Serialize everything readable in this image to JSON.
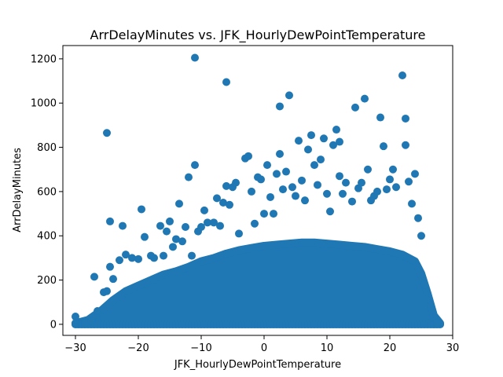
{
  "chart_data": {
    "type": "scatter",
    "title": "ArrDelayMinutes vs. JFK_HourlyDewPointTemperature",
    "xlabel": "JFK_HourlyDewPointTemperature",
    "ylabel": "ArrDelayMinutes",
    "xlim": [
      -32,
      30
    ],
    "ylim": [
      -50,
      1260
    ],
    "xticks": [
      -30,
      -20,
      -10,
      0,
      10,
      20,
      30
    ],
    "yticks": [
      0,
      200,
      400,
      600,
      800,
      1000,
      1200
    ],
    "grid": false,
    "legend": "none",
    "marker_color": "#1f77b4",
    "points": [
      [
        -30,
        35
      ],
      [
        -30,
        5
      ],
      [
        -28.5,
        5
      ],
      [
        -27.5,
        15
      ],
      [
        -27,
        215
      ],
      [
        -26.5,
        60
      ],
      [
        -25.5,
        145
      ],
      [
        -25,
        150
      ],
      [
        -25,
        865
      ],
      [
        -24.5,
        465
      ],
      [
        -24.5,
        260
      ],
      [
        -24,
        205
      ],
      [
        -23,
        290
      ],
      [
        -22.5,
        445
      ],
      [
        -22,
        315
      ],
      [
        -21,
        300
      ],
      [
        -20,
        295
      ],
      [
        -19.5,
        520
      ],
      [
        -19,
        395
      ],
      [
        -18,
        310
      ],
      [
        -17.5,
        300
      ],
      [
        -16.5,
        445
      ],
      [
        -16,
        310
      ],
      [
        -15.5,
        420
      ],
      [
        -15,
        465
      ],
      [
        -14.5,
        350
      ],
      [
        -14,
        385
      ],
      [
        -13.5,
        545
      ],
      [
        -13,
        375
      ],
      [
        -12.5,
        440
      ],
      [
        -12,
        665
      ],
      [
        -11.5,
        310
      ],
      [
        -11,
        720
      ],
      [
        -11,
        1205
      ],
      [
        -10.5,
        420
      ],
      [
        -10,
        440
      ],
      [
        -9.5,
        515
      ],
      [
        -9,
        460
      ],
      [
        -8,
        460
      ],
      [
        -7.5,
        570
      ],
      [
        -7,
        445
      ],
      [
        -6.5,
        550
      ],
      [
        -6,
        625
      ],
      [
        -6,
        1095
      ],
      [
        -5.5,
        540
      ],
      [
        -5,
        620
      ],
      [
        -4.5,
        640
      ],
      [
        -4,
        410
      ],
      [
        -3,
        750
      ],
      [
        -2.5,
        760
      ],
      [
        -2,
        600
      ],
      [
        -1.5,
        455
      ],
      [
        -1,
        665
      ],
      [
        -0.5,
        655
      ],
      [
        0,
        500
      ],
      [
        0.5,
        720
      ],
      [
        1,
        575
      ],
      [
        1.5,
        500
      ],
      [
        2,
        680
      ],
      [
        2.5,
        985
      ],
      [
        2.5,
        770
      ],
      [
        3,
        610
      ],
      [
        3.5,
        690
      ],
      [
        4,
        1035
      ],
      [
        4.5,
        620
      ],
      [
        5,
        580
      ],
      [
        5.5,
        830
      ],
      [
        6,
        650
      ],
      [
        6.5,
        560
      ],
      [
        7,
        790
      ],
      [
        7.5,
        855
      ],
      [
        8,
        720
      ],
      [
        8.5,
        630
      ],
      [
        9,
        745
      ],
      [
        9.5,
        840
      ],
      [
        10,
        590
      ],
      [
        10.5,
        510
      ],
      [
        11,
        810
      ],
      [
        11.5,
        880
      ],
      [
        12,
        825
      ],
      [
        12,
        670
      ],
      [
        12.5,
        590
      ],
      [
        13,
        640
      ],
      [
        14,
        555
      ],
      [
        14.5,
        980
      ],
      [
        15,
        615
      ],
      [
        15.5,
        640
      ],
      [
        16,
        1020
      ],
      [
        16.5,
        700
      ],
      [
        17,
        560
      ],
      [
        17.5,
        580
      ],
      [
        18,
        600
      ],
      [
        18.5,
        935
      ],
      [
        19,
        805
      ],
      [
        19.5,
        610
      ],
      [
        20,
        655
      ],
      [
        20.5,
        700
      ],
      [
        21,
        620
      ],
      [
        22,
        1125
      ],
      [
        22.5,
        930
      ],
      [
        22.5,
        810
      ],
      [
        23,
        645
      ],
      [
        23.5,
        545
      ],
      [
        24,
        680
      ],
      [
        24.5,
        480
      ],
      [
        25,
        400
      ],
      [
        25.5,
        180
      ],
      [
        26,
        110
      ],
      [
        27,
        30
      ],
      [
        27.5,
        5
      ]
    ],
    "dense_band_top": [
      [
        -30,
        5
      ],
      [
        -28,
        20
      ],
      [
        -26,
        60
      ],
      [
        -24,
        110
      ],
      [
        -22,
        150
      ],
      [
        -20,
        175
      ],
      [
        -18,
        200
      ],
      [
        -16,
        225
      ],
      [
        -14,
        240
      ],
      [
        -12,
        260
      ],
      [
        -10,
        285
      ],
      [
        -8,
        300
      ],
      [
        -6,
        320
      ],
      [
        -4,
        335
      ],
      [
        -2,
        345
      ],
      [
        0,
        355
      ],
      [
        2,
        360
      ],
      [
        4,
        365
      ],
      [
        6,
        370
      ],
      [
        8,
        370
      ],
      [
        10,
        365
      ],
      [
        12,
        360
      ],
      [
        14,
        355
      ],
      [
        16,
        350
      ],
      [
        18,
        340
      ],
      [
        20,
        330
      ],
      [
        22,
        315
      ],
      [
        24,
        285
      ],
      [
        25,
        230
      ],
      [
        26,
        140
      ],
      [
        27,
        40
      ],
      [
        28,
        5
      ]
    ]
  }
}
